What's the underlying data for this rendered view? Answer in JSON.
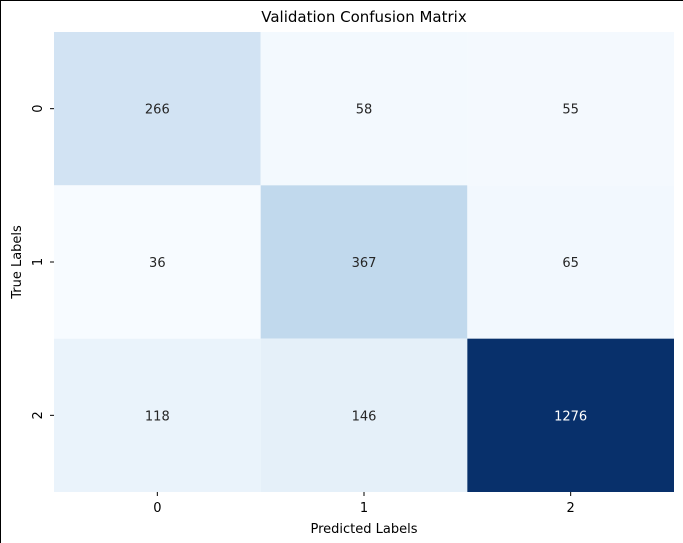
{
  "chart_data": {
    "type": "heatmap",
    "title": "Validation Confusion Matrix",
    "xlabel": "Predicted Labels",
    "ylabel": "True Labels",
    "x_categories": [
      "0",
      "1",
      "2"
    ],
    "y_categories": [
      "0",
      "1",
      "2"
    ],
    "values": [
      [
        266,
        58,
        55
      ],
      [
        36,
        367,
        65
      ],
      [
        118,
        146,
        1276
      ]
    ],
    "colormap": "Blues",
    "color_min": "#f7fbff",
    "color_max": "#08306b",
    "colorbar": false,
    "grid": false
  }
}
